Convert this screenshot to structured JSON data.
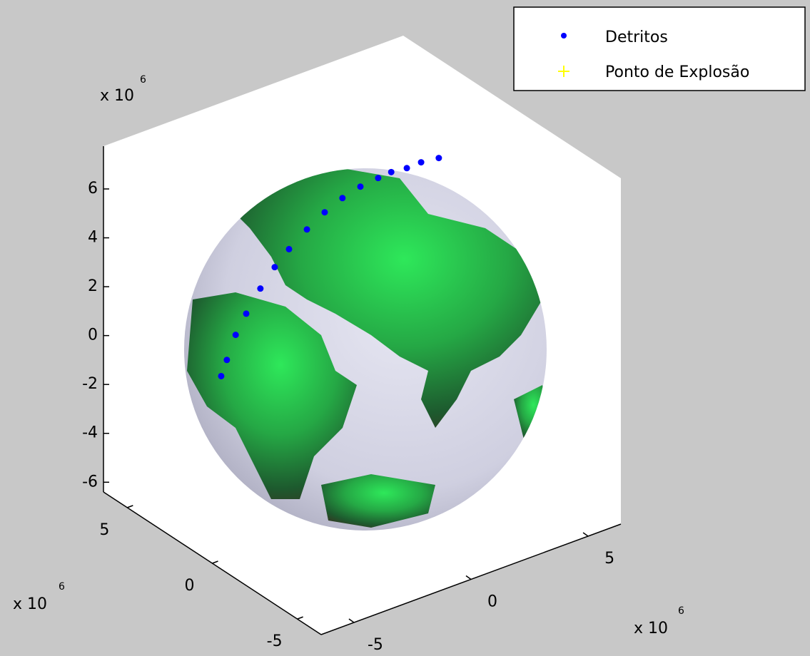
{
  "chart_data": {
    "type": "scatter3",
    "series": [
      {
        "name": "Detritos",
        "color": "#0000ff",
        "marker": "dot",
        "x": [
          -4.14,
          -3.84,
          -3.37,
          -2.89,
          -2.27,
          -1.68,
          -1.12,
          -0.45,
          0.2,
          0.82,
          1.42,
          1.99,
          2.41,
          2.88,
          3.33,
          3.86
        ],
        "y": [
          2.59,
          2.67,
          2.8,
          2.84,
          2.86,
          2.83,
          2.76,
          2.63,
          2.48,
          2.29,
          2.06,
          1.8,
          1.61,
          1.34,
          1.12,
          0.81
        ],
        "z": [
          -0.72,
          -0.2,
          0.6,
          1.28,
          2.08,
          2.76,
          3.33,
          3.96,
          4.5,
          4.95,
          5.31,
          5.58,
          5.76,
          5.88,
          6.06,
          6.19
        ]
      },
      {
        "name": "Ponto de Explosão",
        "color": "#ffff00",
        "marker": "plus",
        "x": [],
        "y": [],
        "z": []
      }
    ],
    "xlim": [
      -6.4,
      6.4
    ],
    "ylim": [
      -6.4,
      6.4
    ],
    "zlim": [
      -6.4,
      7.75
    ],
    "xticks": [
      -5,
      0,
      5
    ],
    "yticks": [
      -5,
      0,
      5
    ],
    "zticks": [
      -6,
      -4,
      -2,
      0,
      2,
      4,
      6
    ],
    "xmultiplier": {
      "base": "x 10",
      "power": "6"
    },
    "ymultiplier": {
      "base": "x 10",
      "power": "6"
    },
    "zmultiplier": {
      "base": "x 10",
      "power": "6"
    },
    "legend": "top-right"
  }
}
